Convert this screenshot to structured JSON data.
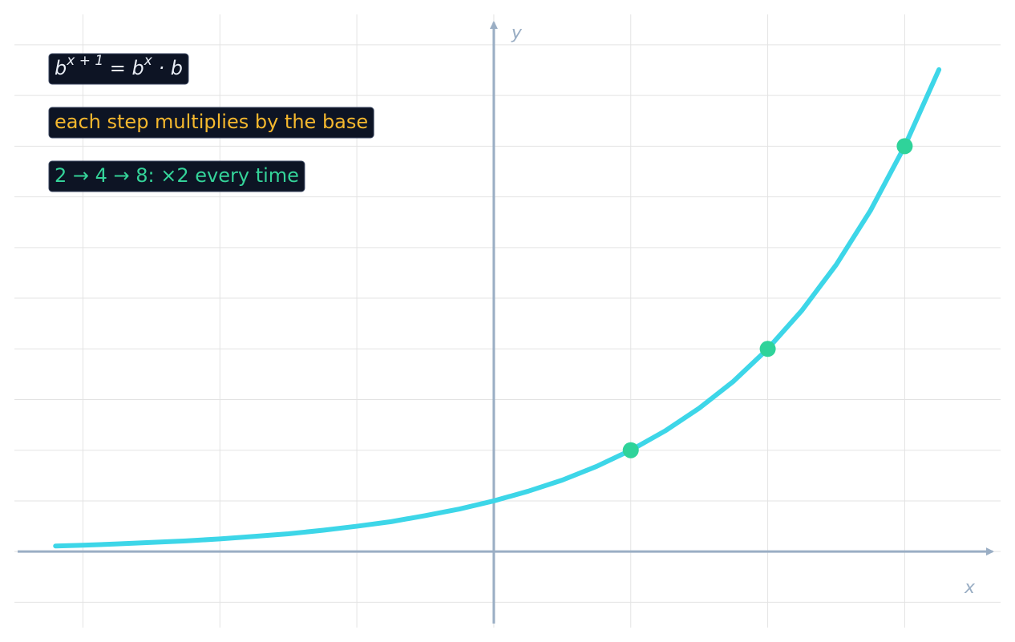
{
  "chart_data": {
    "type": "line",
    "x_label": "x",
    "y_label": "y",
    "xlim": [
      -3.5,
      3.7
    ],
    "ylim": [
      -1.5,
      10.6
    ],
    "xticks": [
      -3,
      -2,
      -1,
      0,
      1,
      2,
      3
    ],
    "yticks": [
      -1,
      0,
      1,
      2,
      3,
      4,
      5,
      6,
      7,
      8,
      9,
      10
    ],
    "grid": true,
    "series": [
      {
        "color": "#3dd6e8",
        "x": [
          -3.2,
          -3,
          -2.75,
          -2.5,
          -2.25,
          -2,
          -1.75,
          -1.5,
          -1.25,
          -1,
          -0.75,
          -0.5,
          -0.25,
          0,
          0.25,
          0.5,
          0.75,
          1,
          1.25,
          1.5,
          1.75,
          2,
          2.25,
          2.5,
          2.75,
          3,
          3.25
        ],
        "values": [
          0.11,
          0.125,
          0.15,
          0.18,
          0.21,
          0.25,
          0.3,
          0.35,
          0.42,
          0.5,
          0.59,
          0.71,
          0.84,
          1,
          1.19,
          1.41,
          1.68,
          2,
          2.38,
          2.83,
          3.36,
          4,
          4.76,
          5.66,
          6.73,
          8,
          9.51
        ]
      },
      {
        "color": "#2fd39a",
        "markers": true,
        "x": [
          1,
          2,
          3
        ],
        "values": [
          2,
          4,
          8
        ]
      }
    ],
    "annotations": [
      {
        "color": "#e8edf5",
        "parts": [
          {
            "text": "b"
          },
          {
            "sup": "x + 1"
          },
          {
            "text": " = b"
          },
          {
            "sup": "x"
          },
          {
            "text": " · b"
          }
        ]
      },
      {
        "color": "#f5b82e",
        "text": "each step multiplies by the base"
      },
      {
        "color": "#34d399",
        "text": "2 → 4 → 8:  ×2 every time"
      }
    ]
  }
}
